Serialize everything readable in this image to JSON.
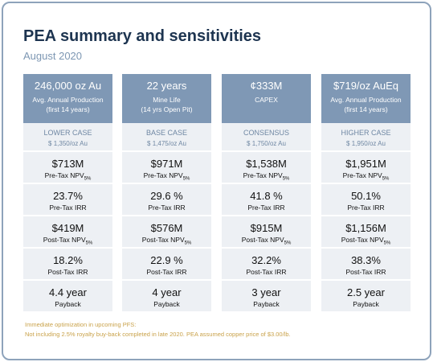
{
  "header": {
    "title": "PEA summary and sensitivities",
    "subtitle": "August 2020"
  },
  "columns": [
    {
      "header": {
        "value": "246,000 oz Au",
        "lines": [
          "Avg. Annual Production",
          "(first 14 years)"
        ]
      },
      "case": {
        "name": "LOWER CASE",
        "price": "$ 1,350/oz Au"
      },
      "metrics": [
        {
          "value": "$713M",
          "label": "Pre-Tax NPV",
          "sub": "5%"
        },
        {
          "value": "23.7%",
          "label": "Pre-Tax IRR"
        },
        {
          "value": "$419M",
          "label": "Post-Tax NPV",
          "sub": "5%"
        },
        {
          "value": "18.2%",
          "label": "Post-Tax IRR"
        },
        {
          "value": "4.4 year",
          "label": "Payback"
        }
      ]
    },
    {
      "header": {
        "value": "22 years",
        "lines": [
          "Mine Life",
          "(14 yrs Open Pit)"
        ]
      },
      "case": {
        "name": "BASE CASE",
        "price": "$ 1,475/oz Au"
      },
      "metrics": [
        {
          "value": "$971M",
          "label": "Pre-Tax NPV",
          "sub": "5%"
        },
        {
          "value": "29.6 %",
          "label": "Pre-Tax IRR"
        },
        {
          "value": "$576M",
          "label": "Post-Tax NPV",
          "sub": "5%"
        },
        {
          "value": "22.9 %",
          "label": "Post-Tax IRR"
        },
        {
          "value": "4 year",
          "label": "Payback"
        }
      ]
    },
    {
      "header": {
        "value": "¢333M",
        "lines": [
          "CAPEX"
        ]
      },
      "case": {
        "name": "CONSENSUS",
        "price": "$ 1,750/oz Au"
      },
      "metrics": [
        {
          "value": "$1,538M",
          "label": "Pre-Tax NPV",
          "sub": "5%"
        },
        {
          "value": "41.8 %",
          "label": "Pre-Tax IRR"
        },
        {
          "value": "$915M",
          "label": "Post-Tax NPV",
          "sub": "5%"
        },
        {
          "value": "32.2%",
          "label": "Post-Tax IRR"
        },
        {
          "value": "3 year",
          "label": "Payback"
        }
      ]
    },
    {
      "header": {
        "value": "$719/oz AuEq",
        "lines": [
          "Avg. Annual Production",
          "(first 14 years)"
        ]
      },
      "case": {
        "name": "HIGHER CASE",
        "price": "$ 1,950/oz Au"
      },
      "metrics": [
        {
          "value": "$1,951M",
          "label": "Pre-Tax NPV",
          "sub": "5%"
        },
        {
          "value": "50.1%",
          "label": "Pre-Tax IRR"
        },
        {
          "value": "$1,156M",
          "label": "Post-Tax NPV",
          "sub": "5%"
        },
        {
          "value": "38.3%",
          "label": "Post-Tax IRR"
        },
        {
          "value": "2.5 year",
          "label": "Payback"
        }
      ]
    }
  ],
  "footnotes": [
    "Immediate optimization in upcoming PFS:",
    "Not including 2.5% royalty buy-back completed in late 2020. PEA assumed copper price of $3.00/lb."
  ]
}
